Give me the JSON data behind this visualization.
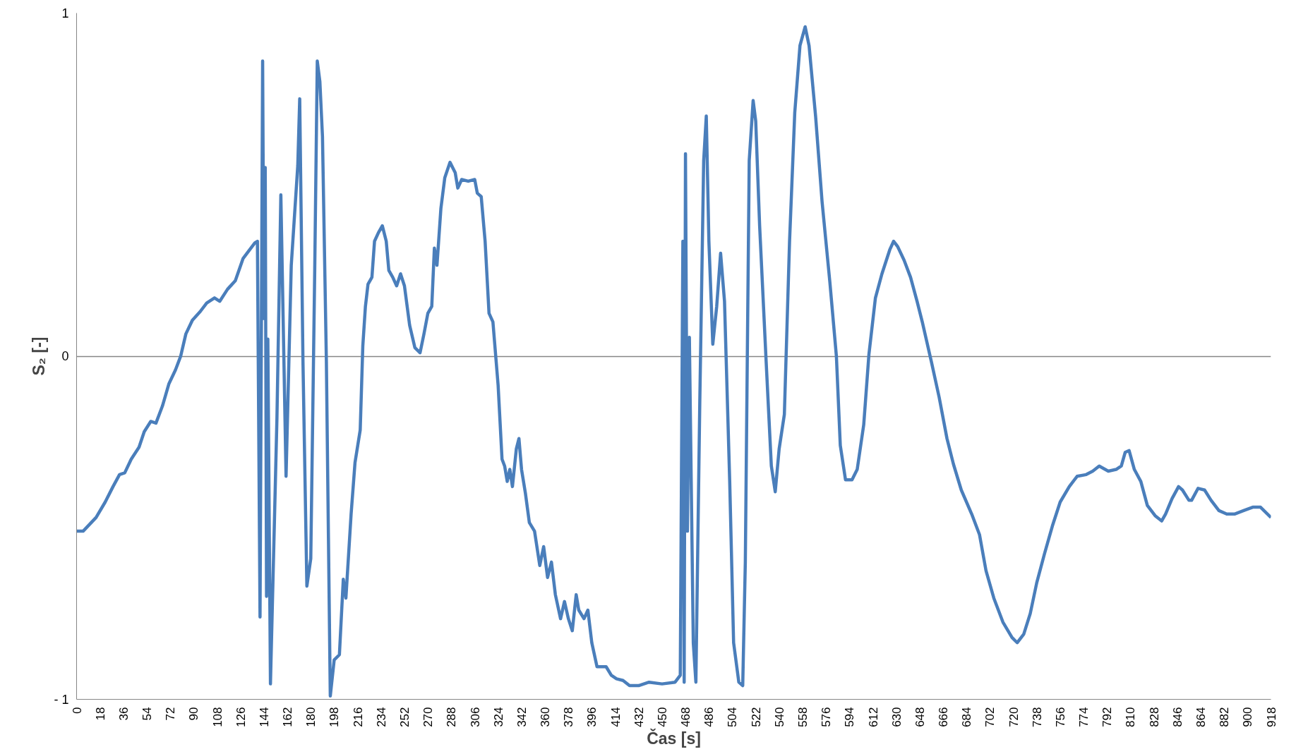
{
  "chart_data": {
    "type": "line",
    "xlabel": "Čas [s]",
    "ylabel": "S₂ [-]",
    "xlim": [
      0,
      918
    ],
    "ylim": [
      -1,
      1
    ],
    "xticks": [
      0,
      18,
      36,
      54,
      72,
      90,
      108,
      126,
      144,
      162,
      180,
      198,
      216,
      234,
      252,
      270,
      288,
      306,
      324,
      342,
      360,
      378,
      396,
      414,
      432,
      450,
      468,
      486,
      504,
      522,
      540,
      558,
      576,
      594,
      612,
      630,
      648,
      666,
      684,
      702,
      720,
      738,
      756,
      774,
      792,
      810,
      828,
      846,
      864,
      882,
      900,
      918
    ],
    "yticks": [
      {
        "value": -1,
        "label": "- 1"
      },
      0,
      1
    ],
    "grid": "y",
    "marker": "none",
    "line_style": "solid",
    "series": [
      {
        "color": "#4a7ebb",
        "x": [
          0,
          5,
          15,
          22,
          28,
          33,
          37,
          42,
          48,
          52,
          57,
          61,
          66,
          71,
          76,
          80,
          84,
          89,
          95,
          100,
          106,
          110,
          116,
          122,
          128,
          133,
          137,
          139,
          141,
          143,
          144,
          145,
          146,
          147,
          149,
          154,
          157,
          161,
          165,
          170,
          171.5,
          174,
          177,
          180,
          183,
          185,
          187,
          189,
          192,
          195,
          198,
          202,
          205,
          207,
          211,
          214,
          218,
          220,
          222,
          224,
          227,
          229,
          232,
          235,
          238,
          240,
          243,
          246,
          249,
          252,
          256,
          260,
          264,
          267,
          270,
          273,
          275,
          277,
          280,
          283,
          287,
          291,
          293,
          296,
          301,
          306,
          308,
          311,
          314,
          317,
          320,
          324,
          327,
          329,
          331,
          333,
          335,
          338,
          340,
          342,
          345,
          348,
          352,
          356,
          359,
          362,
          365,
          368,
          372,
          375,
          378,
          381,
          384,
          386,
          390,
          393,
          396,
          400,
          404,
          407,
          411,
          415,
          420,
          425,
          432,
          440,
          450,
          460,
          464,
          466,
          467,
          468,
          469.5,
          471,
          474,
          476,
          479,
          482,
          484,
          486,
          489,
          492,
          495,
          498,
          502,
          505,
          509,
          512,
          514,
          517,
          520,
          522,
          525,
          530,
          534,
          537,
          540,
          544,
          548,
          552,
          556,
          560,
          563,
          568,
          573,
          579,
          584,
          587,
          591,
          596,
          600,
          605,
          609,
          614,
          619,
          625,
          628,
          631,
          636,
          641,
          646,
          650,
          657,
          663,
          669,
          674,
          680,
          688,
          694,
          699,
          705,
          712,
          719,
          723,
          728,
          733,
          738,
          744,
          750,
          756,
          763,
          769,
          776,
          781,
          786,
          793,
          799,
          803,
          806,
          809,
          813,
          818,
          823,
          829,
          834,
          837,
          842,
          847,
          850,
          855,
          857,
          862,
          867,
          872,
          878,
          884,
          890,
          897,
          904,
          910,
          918
        ],
        "values": [
          -0.51,
          -0.51,
          -0.47,
          -0.425,
          -0.38,
          -0.345,
          -0.34,
          -0.3,
          -0.265,
          -0.22,
          -0.19,
          -0.195,
          -0.145,
          -0.08,
          -0.04,
          0.0,
          0.065,
          0.105,
          0.13,
          0.155,
          0.17,
          0.16,
          0.195,
          0.22,
          0.285,
          0.31,
          0.33,
          0.335,
          -0.76,
          0.86,
          0.11,
          0.55,
          -0.7,
          0.05,
          -0.955,
          -0.18,
          0.47,
          -0.35,
          0.265,
          0.555,
          0.75,
          -0.015,
          -0.67,
          -0.59,
          0.24,
          0.86,
          0.8,
          0.64,
          -0.016,
          -0.99,
          -0.885,
          -0.87,
          -0.65,
          -0.705,
          -0.46,
          -0.31,
          -0.215,
          0.03,
          0.145,
          0.21,
          0.23,
          0.335,
          0.36,
          0.38,
          0.335,
          0.25,
          0.23,
          0.205,
          0.24,
          0.205,
          0.09,
          0.025,
          0.01,
          0.065,
          0.125,
          0.145,
          0.315,
          0.265,
          0.43,
          0.52,
          0.565,
          0.535,
          0.49,
          0.515,
          0.51,
          0.515,
          0.475,
          0.465,
          0.335,
          0.125,
          0.1,
          -0.085,
          -0.3,
          -0.32,
          -0.365,
          -0.33,
          -0.38,
          -0.27,
          -0.24,
          -0.33,
          -0.4,
          -0.485,
          -0.51,
          -0.61,
          -0.555,
          -0.645,
          -0.6,
          -0.695,
          -0.765,
          -0.715,
          -0.765,
          -0.8,
          -0.695,
          -0.74,
          -0.765,
          -0.74,
          -0.835,
          -0.905,
          -0.905,
          -0.905,
          -0.93,
          -0.94,
          -0.945,
          -0.96,
          -0.96,
          -0.95,
          -0.955,
          -0.95,
          -0.93,
          0.335,
          -0.95,
          0.59,
          -0.51,
          0.055,
          -0.835,
          -0.95,
          -0.135,
          0.57,
          0.7,
          0.335,
          0.035,
          0.145,
          0.3,
          0.16,
          -0.365,
          -0.835,
          -0.95,
          -0.96,
          -0.6,
          0.57,
          0.745,
          0.685,
          0.38,
          -0.015,
          -0.32,
          -0.395,
          -0.27,
          -0.17,
          0.335,
          0.71,
          0.905,
          0.96,
          0.905,
          0.7,
          0.45,
          0.215,
          0.0,
          -0.26,
          -0.36,
          -0.36,
          -0.33,
          -0.2,
          0.005,
          0.17,
          0.24,
          0.31,
          0.335,
          0.32,
          0.28,
          0.23,
          0.16,
          0.1,
          -0.016,
          -0.12,
          -0.24,
          -0.315,
          -0.39,
          -0.46,
          -0.52,
          -0.625,
          -0.705,
          -0.775,
          -0.82,
          -0.835,
          -0.81,
          -0.75,
          -0.66,
          -0.575,
          -0.495,
          -0.425,
          -0.38,
          -0.35,
          -0.345,
          -0.335,
          -0.32,
          -0.335,
          -0.33,
          -0.32,
          -0.28,
          -0.275,
          -0.33,
          -0.365,
          -0.435,
          -0.465,
          -0.48,
          -0.46,
          -0.415,
          -0.38,
          -0.39,
          -0.42,
          -0.42,
          -0.385,
          -0.39,
          -0.42,
          -0.45,
          -0.46,
          -0.46,
          -0.45,
          -0.44,
          -0.44,
          -0.47
        ]
      }
    ]
  }
}
